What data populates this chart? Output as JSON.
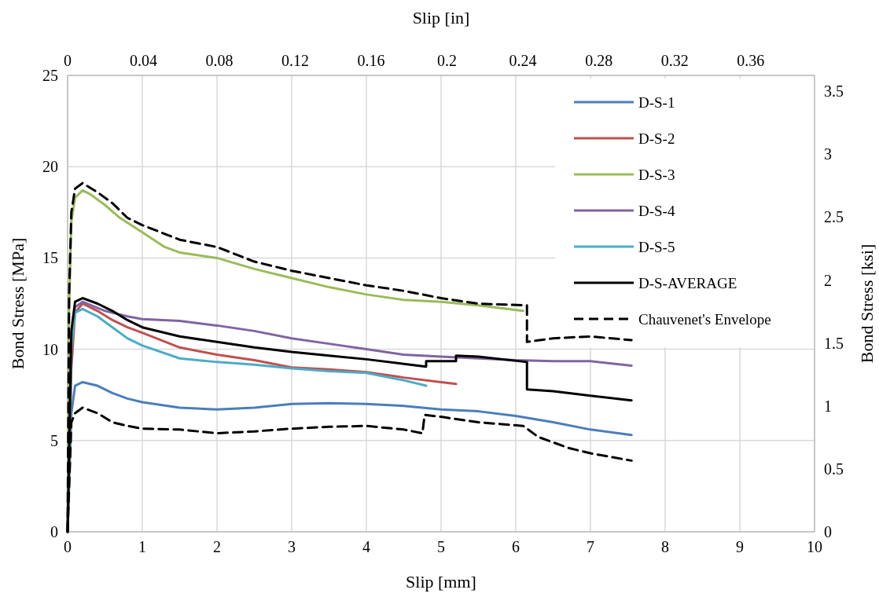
{
  "chart_data": {
    "type": "line",
    "xlabel": "Slip [mm]",
    "ylabel": "Bond Stress [MPa]",
    "x2label": "Slip [in]",
    "y2label": "Bond Stress [ksi]",
    "xlim": [
      0,
      10
    ],
    "xticks": [
      0,
      1,
      2,
      3,
      4,
      5,
      6,
      7,
      8,
      9,
      10
    ],
    "ylim": [
      0,
      25
    ],
    "yticks": [
      0,
      5,
      10,
      15,
      20,
      25
    ],
    "x2lim": [
      0,
      0.3937
    ],
    "x2ticks": [
      0,
      0.04,
      0.08,
      0.12,
      0.16,
      0.2,
      0.24,
      0.28,
      0.32,
      0.36
    ],
    "y2lim": [
      0,
      3.626
    ],
    "y2ticks": [
      0,
      0.5,
      1,
      1.5,
      2,
      2.5,
      3,
      3.5
    ],
    "grid": true,
    "legend": "top right",
    "line_style": "solid",
    "series": [
      {
        "name": "D-S-1",
        "color": "#4a7ebb",
        "x": [
          0,
          0.05,
          0.1,
          0.2,
          0.4,
          0.6,
          0.8,
          1,
          1.5,
          2,
          2.5,
          3,
          3.5,
          4,
          4.5,
          5,
          5.5,
          6,
          6.5,
          7,
          7.55
        ],
        "values": [
          0,
          6.5,
          8.0,
          8.2,
          8.0,
          7.6,
          7.3,
          7.1,
          6.8,
          6.7,
          6.8,
          7.0,
          7.05,
          7.0,
          6.9,
          6.7,
          6.6,
          6.35,
          6.0,
          5.6,
          5.3
        ]
      },
      {
        "name": "D-S-2",
        "color": "#c0504d",
        "x": [
          0,
          0.05,
          0.1,
          0.2,
          0.4,
          0.6,
          0.8,
          1,
          1.5,
          2,
          2.5,
          3,
          3.5,
          4,
          4.5,
          5,
          5.2
        ],
        "values": [
          0,
          9,
          12.0,
          12.5,
          12.1,
          11.6,
          11.2,
          10.9,
          10.1,
          9.7,
          9.4,
          9.0,
          8.9,
          8.75,
          8.45,
          8.2,
          8.1
        ]
      },
      {
        "name": "D-S-3",
        "color": "#9bbb59",
        "x": [
          0,
          0.02,
          0.05,
          0.1,
          0.2,
          0.3,
          0.5,
          0.7,
          1,
          1.3,
          1.5,
          2,
          2.5,
          3,
          3.5,
          4,
          4.5,
          5,
          5.5,
          6.1
        ],
        "values": [
          0,
          12,
          17,
          18.3,
          18.7,
          18.5,
          17.9,
          17.2,
          16.4,
          15.6,
          15.3,
          15.0,
          14.4,
          13.9,
          13.4,
          13.0,
          12.7,
          12.6,
          12.4,
          12.1
        ]
      },
      {
        "name": "D-S-4",
        "color": "#8064a2",
        "x": [
          0,
          0.05,
          0.1,
          0.2,
          0.5,
          0.8,
          1,
          1.5,
          2,
          2.5,
          3,
          3.5,
          4,
          4.5,
          5,
          5.5,
          6,
          6.5,
          7,
          7.55
        ],
        "values": [
          0,
          10,
          12.3,
          12.6,
          12.1,
          11.8,
          11.65,
          11.55,
          11.3,
          11.0,
          10.6,
          10.3,
          10.0,
          9.7,
          9.6,
          9.5,
          9.4,
          9.35,
          9.35,
          9.1
        ]
      },
      {
        "name": "D-S-5",
        "color": "#4bacc6",
        "x": [
          0,
          0.05,
          0.1,
          0.2,
          0.4,
          0.6,
          0.8,
          1,
          1.5,
          2,
          2.5,
          3,
          3.5,
          4,
          4.5,
          4.8
        ],
        "values": [
          0,
          10,
          12.0,
          12.2,
          11.8,
          11.2,
          10.6,
          10.2,
          9.5,
          9.3,
          9.15,
          8.95,
          8.8,
          8.7,
          8.3,
          8.0
        ]
      },
      {
        "name": "D-S-AVERAGE",
        "color": "#000000",
        "x": [
          0,
          0.05,
          0.1,
          0.2,
          0.4,
          0.6,
          0.8,
          1,
          1.5,
          2,
          2.5,
          3,
          3.5,
          4,
          4.5,
          4.8,
          4.8,
          5.2,
          5.2,
          5.5,
          6.15,
          6.15,
          6.5,
          7,
          7.55
        ],
        "values": [
          0,
          11,
          12.6,
          12.8,
          12.5,
          12.1,
          11.6,
          11.2,
          10.7,
          10.4,
          10.1,
          9.85,
          9.65,
          9.45,
          9.2,
          9.05,
          9.35,
          9.35,
          9.65,
          9.6,
          9.3,
          7.8,
          7.7,
          7.45,
          7.2
        ]
      },
      {
        "name": "Chauvenet's Envelope",
        "color": "#000000",
        "line_style": "dashed",
        "x": [
          0,
          0.02,
          0.05,
          0.1,
          0.2,
          0.4,
          0.6,
          0.8,
          1,
          1.5,
          2,
          2.5,
          3,
          3.5,
          4,
          4.5,
          5,
          5.5,
          6.15,
          6.15,
          6.5,
          7,
          7.55
        ],
        "values": [
          0,
          13,
          17.5,
          18.8,
          19.1,
          18.6,
          18.0,
          17.2,
          16.8,
          16.0,
          15.6,
          14.8,
          14.3,
          13.9,
          13.5,
          13.2,
          12.8,
          12.5,
          12.4,
          10.4,
          10.6,
          10.7,
          10.5
        ]
      },
      {
        "color": "#000000",
        "line_style": "dashed",
        "x": [
          0,
          0.05,
          0.1,
          0.2,
          0.4,
          0.6,
          0.8,
          1,
          1.5,
          2,
          2.5,
          3,
          3.5,
          4,
          4.5,
          4.75,
          4.78,
          5,
          5.5,
          6.1,
          6.3,
          6.7,
          7,
          7.55
        ],
        "values": [
          0,
          6,
          6.5,
          6.8,
          6.5,
          6.0,
          5.8,
          5.65,
          5.6,
          5.4,
          5.5,
          5.65,
          5.75,
          5.8,
          5.6,
          5.4,
          6.4,
          6.3,
          6.0,
          5.8,
          5.2,
          4.6,
          4.3,
          3.9
        ]
      }
    ]
  }
}
